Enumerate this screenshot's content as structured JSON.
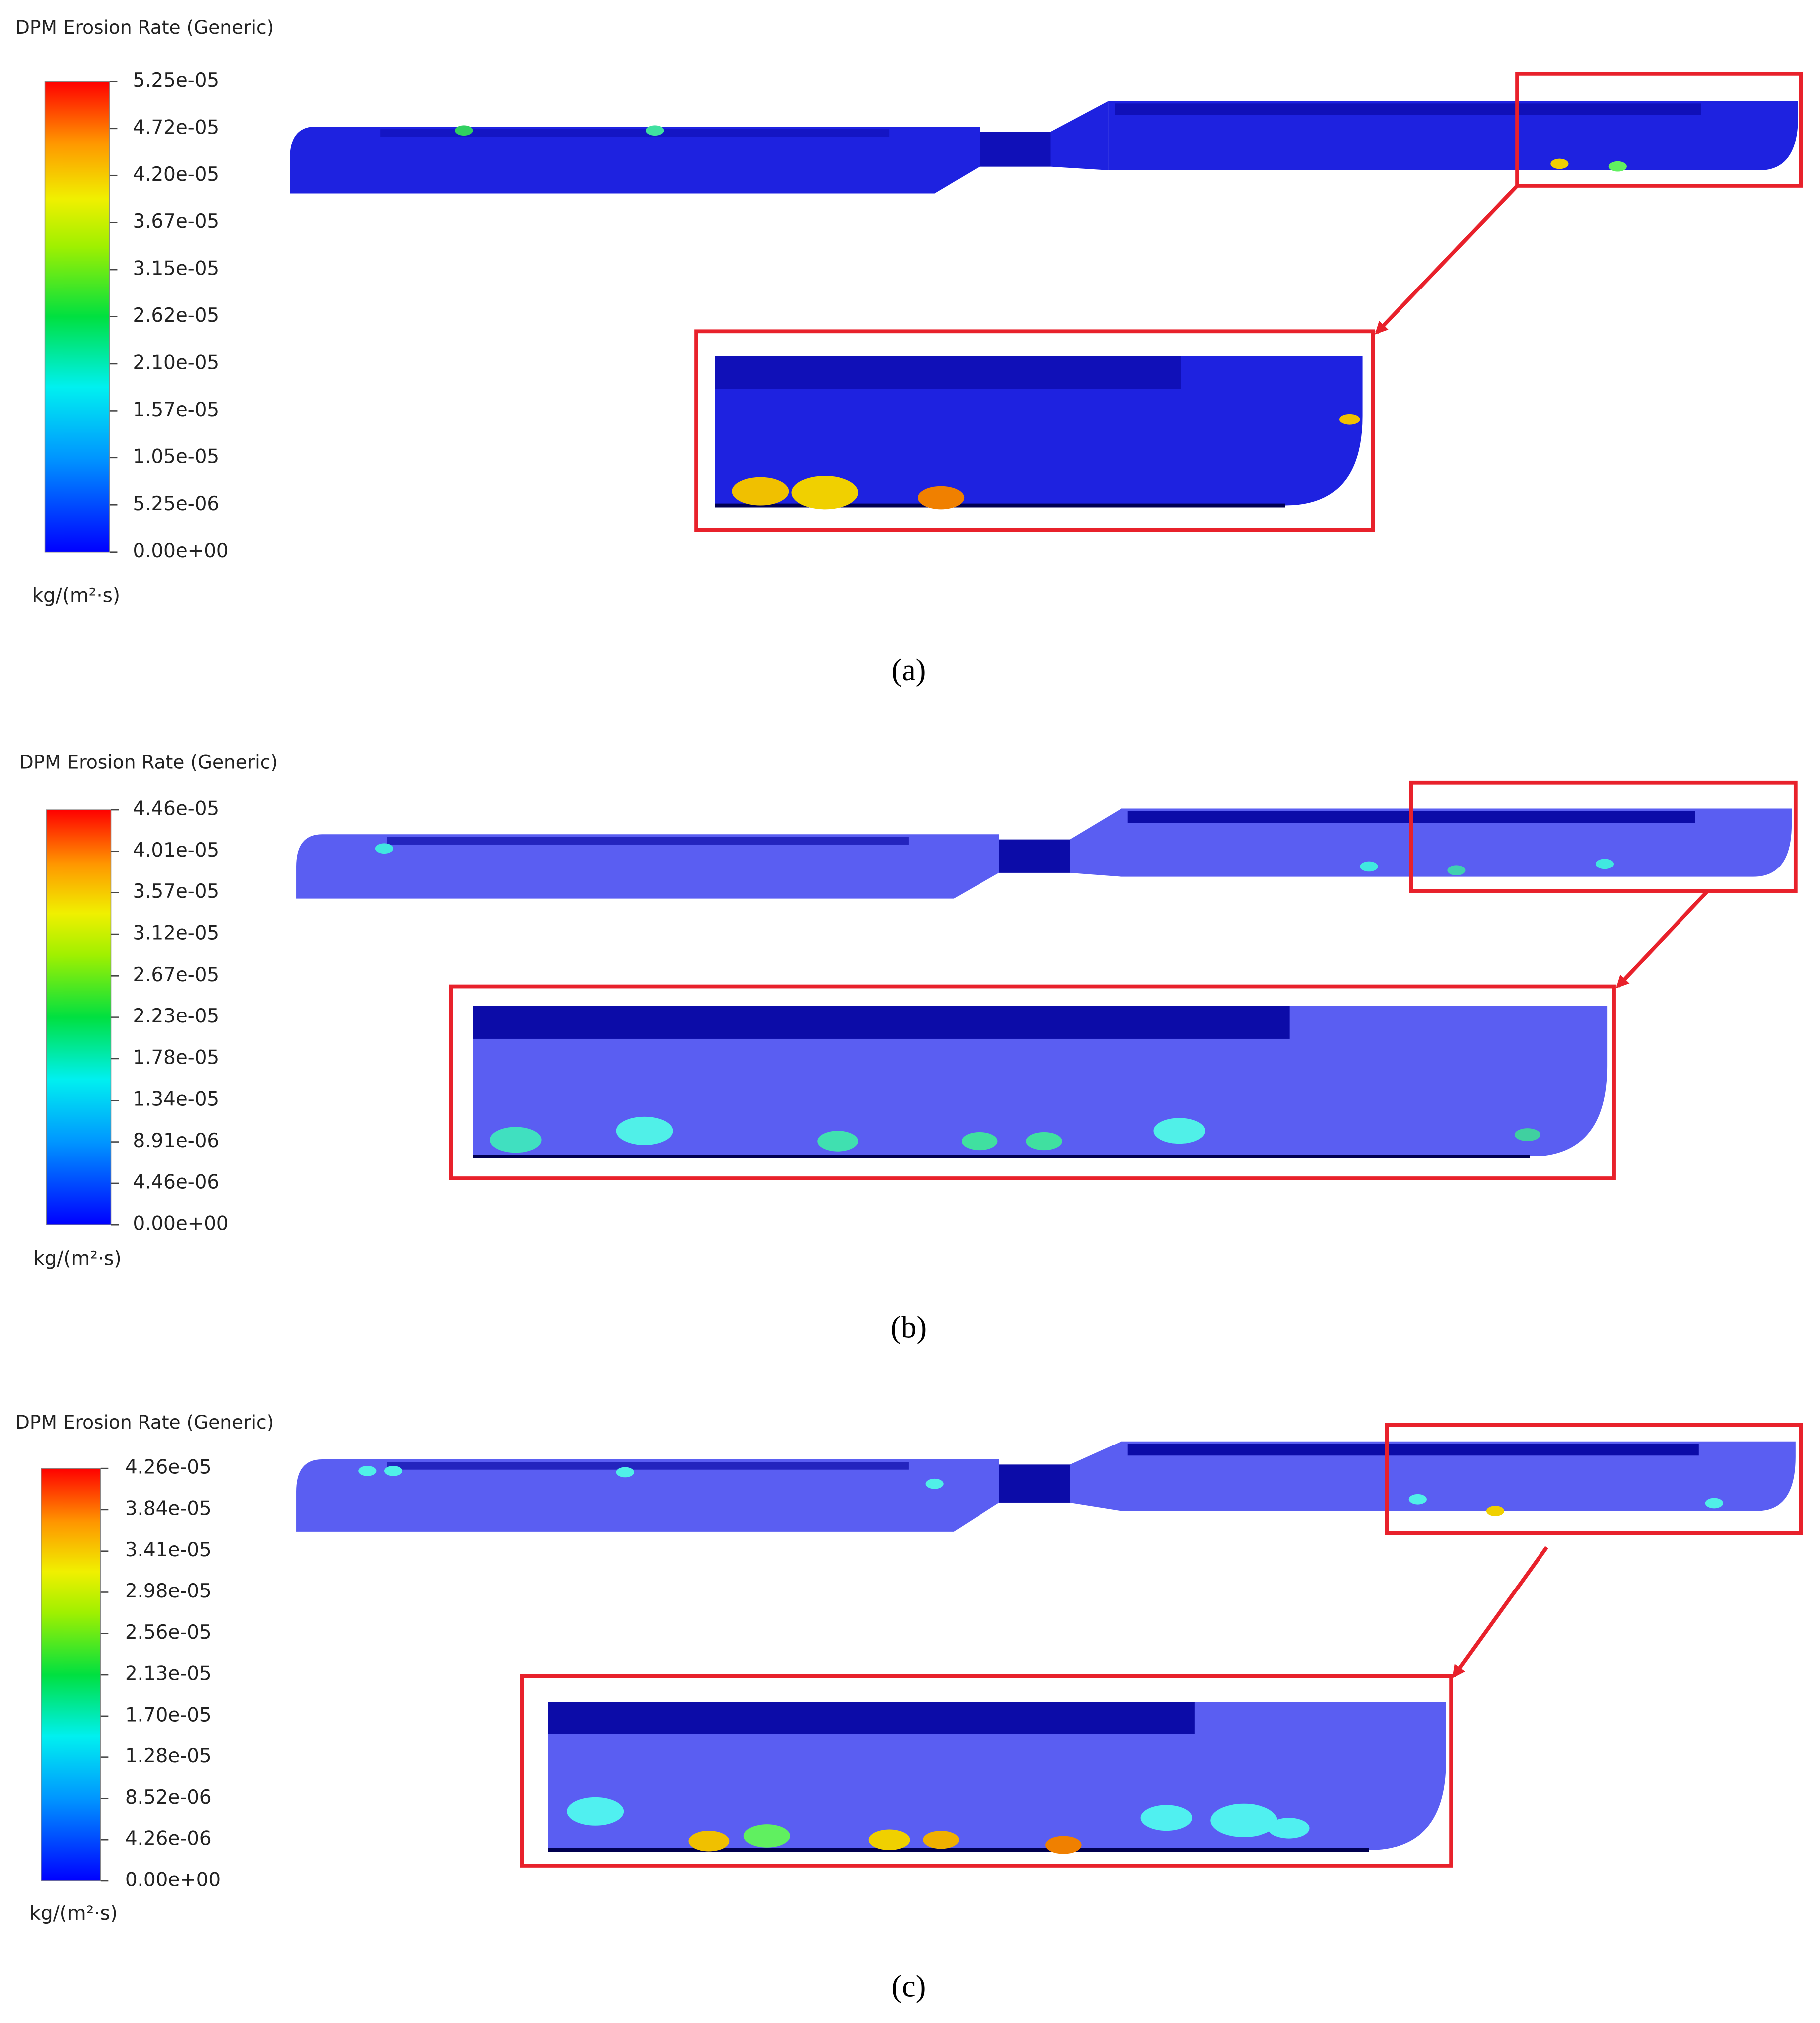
{
  "panels": [
    {
      "title": "DPM Erosion Rate (Generic)",
      "colorbar_labels": [
        "5.25e-05",
        "4.72e-05",
        "4.20e-05",
        "3.67e-05",
        "3.15e-05",
        "2.62e-05",
        "2.10e-05",
        "1.57e-05",
        "1.05e-05",
        "5.25e-06",
        "0.00e+00"
      ],
      "unit": "kg/(m²·s)",
      "caption": "(a)"
    },
    {
      "title": "DPM Erosion Rate (Generic)",
      "colorbar_labels": [
        "4.46e-05",
        "4.01e-05",
        "3.57e-05",
        "3.12e-05",
        "2.67e-05",
        "2.23e-05",
        "1.78e-05",
        "1.34e-05",
        "8.91e-06",
        "4.46e-06",
        "0.00e+00"
      ],
      "unit": "kg/(m²·s)",
      "caption": "(b)"
    },
    {
      "title": "DPM Erosion Rate (Generic)",
      "colorbar_labels": [
        "4.26e-05",
        "3.84e-05",
        "3.41e-05",
        "2.98e-05",
        "2.56e-05",
        "2.13e-05",
        "1.70e-05",
        "1.28e-05",
        "8.52e-06",
        "4.26e-06",
        "0.00e+00"
      ],
      "unit": "kg/(m²·s)",
      "caption": "(c)"
    }
  ]
}
